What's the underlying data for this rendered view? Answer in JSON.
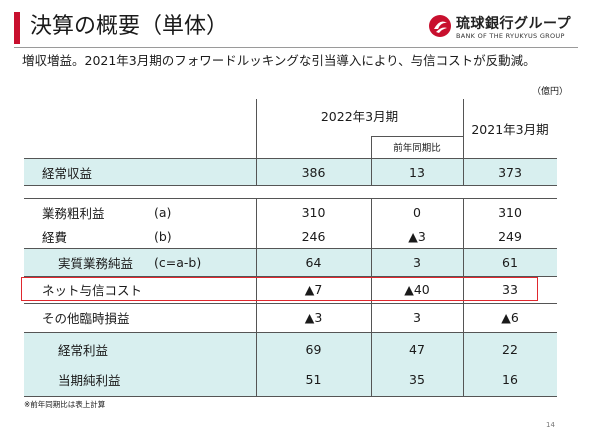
{
  "header": {
    "title": "決算の概要（単体）",
    "logo_name": "琉球銀行グループ",
    "logo_sub": "BANK OF THE RYUKYUS GROUP",
    "brand_color": "#c8102e"
  },
  "subtitle": "増収増益。2021年3月期のフォワードルッキングな引当導入により、与信コストが反動減。",
  "unit": "（億円）",
  "table": {
    "col_2022": "2022年3月期",
    "col_yoy": "前年同期比",
    "col_2021": "2021年3月期",
    "band_color": "#d8efef",
    "highlight_color": "#e0282e",
    "rows": [
      {
        "label": "経常収益",
        "suffix": "",
        "fy2022": "386",
        "yoy": "13",
        "fy2021": "373"
      },
      {
        "label": "業務粗利益",
        "suffix": "(a)",
        "fy2022": "310",
        "yoy": "0",
        "fy2021": "310"
      },
      {
        "label": "経費",
        "suffix": "(b)",
        "fy2022": "246",
        "yoy": "▲3",
        "fy2021": "249"
      },
      {
        "label": "実質業務純益",
        "suffix": "(c=a-b)",
        "fy2022": "64",
        "yoy": "3",
        "fy2021": "61"
      },
      {
        "label": "ネット与信コスト",
        "suffix": "",
        "fy2022": "▲7",
        "yoy": "▲40",
        "fy2021": "33"
      },
      {
        "label": "その他臨時損益",
        "suffix": "",
        "fy2022": "▲3",
        "yoy": "3",
        "fy2021": "▲6"
      },
      {
        "label": "経常利益",
        "suffix": "",
        "fy2022": "69",
        "yoy": "47",
        "fy2021": "22"
      },
      {
        "label": "当期純利益",
        "suffix": "",
        "fy2022": "51",
        "yoy": "35",
        "fy2021": "16"
      }
    ]
  },
  "footnote": "※前年同期比は表上計算",
  "page_number": "14"
}
